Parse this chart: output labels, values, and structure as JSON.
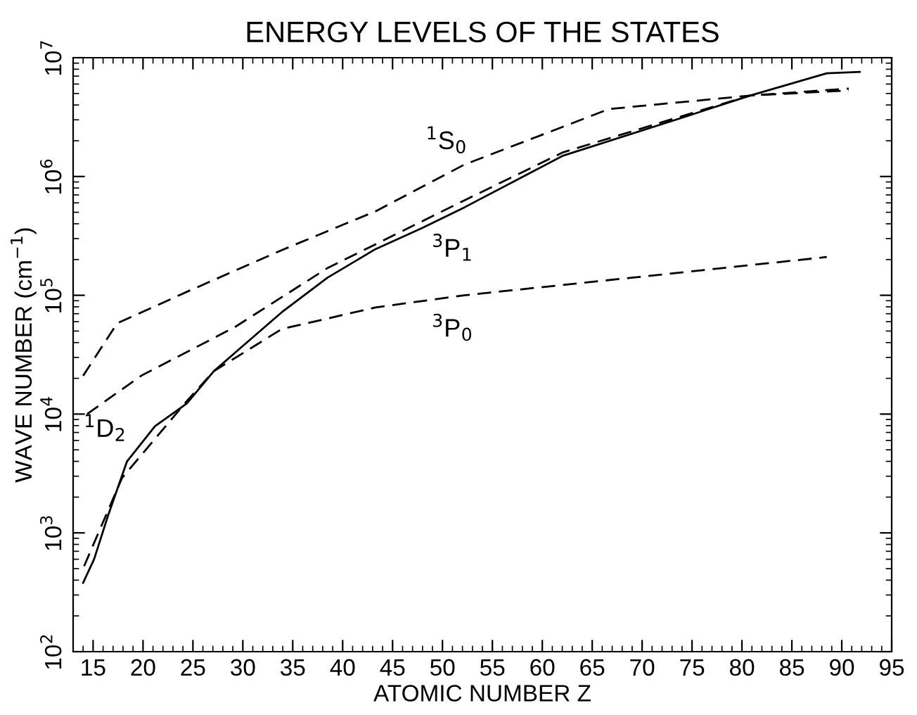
{
  "chart_data": {
    "type": "line",
    "title": "ENERGY LEVELS OF THE STATES",
    "xlabel": "ATOMIC NUMBER Z",
    "ylabel": "WAVE NUMBER (cm$^{−1}$)",
    "log": "y",
    "xlim": [
      13,
      95
    ],
    "xticks": [
      15,
      20,
      25,
      30,
      35,
      40,
      45,
      50,
      55,
      60,
      65,
      70,
      75,
      80,
      85,
      90,
      95
    ],
    "ylim": [
      100,
      10000000
    ],
    "yticks": [
      {
        "value": 100,
        "label": "10$^{2}$"
      },
      {
        "value": 1000,
        "label": "10$^{3}$"
      },
      {
        "value": 10000,
        "label": "10$^{4}$"
      },
      {
        "value": 100000,
        "label": "10$^{5}$"
      },
      {
        "value": 1000000,
        "label": "10$^{6}$"
      },
      {
        "value": 10000000,
        "label": "10$^{7}$"
      }
    ],
    "grid": false,
    "legend": false,
    "marker": "none",
    "series": [
      {
        "name": "$^{3}$P$_{1}$",
        "color": "#000000",
        "line_style": "solid",
        "x": [
          14,
          15.1,
          16.5,
          18.4,
          21.2,
          24.4,
          27.1,
          29.6,
          33.9,
          38.5,
          43.3,
          48,
          52.2,
          62.1,
          74.4,
          80.8,
          88.5,
          91.8
        ],
        "values": [
          380,
          600,
          1400,
          4000,
          7900,
          12300,
          23000,
          35000,
          72000,
          141000,
          245000,
          370000,
          550000,
          1500000,
          3200000,
          4800000,
          7400000,
          7600000
        ]
      },
      {
        "name": "$^{1}$S$_{0}$",
        "color": "#000000",
        "line_style": "dashed",
        "x": [
          14,
          17.4,
          24.4,
          33.9,
          43.3,
          52.2,
          66.7,
          80.8,
          90.7
        ],
        "values": [
          21000,
          58000,
          107000,
          240000,
          510000,
          1260000,
          3700000,
          4800000,
          5500000
        ]
      },
      {
        "name": "$^{1}$D$_{2}$",
        "color": "#000000",
        "line_style": "dashed",
        "x": [
          14.4,
          19.8,
          29.2,
          38.5,
          52.2,
          62.1,
          74.4,
          80.8,
          90.7
        ],
        "values": [
          10000,
          21000,
          54000,
          170000,
          630000,
          1600000,
          3300000,
          4800000,
          5300000
        ]
      },
      {
        "name": "$^{3}$P$_{0}$",
        "color": "#000000",
        "line_style": "dashed",
        "x": [
          14.1,
          17.9,
          24.4,
          27.1,
          33.9,
          43.3,
          52.2,
          69.1,
          88.5
        ],
        "values": [
          525,
          2900,
          12900,
          23000,
          52000,
          79000,
          100000,
          141000,
          210000
        ]
      }
    ]
  }
}
